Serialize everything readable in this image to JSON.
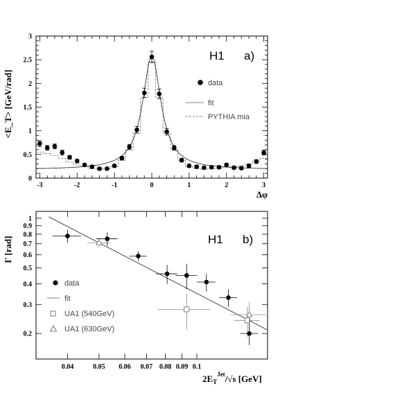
{
  "chart_data": [
    {
      "type": "scatter",
      "panel_label": "a)",
      "experiment_label": "H1",
      "xlabel": "Δφ",
      "ylabel": "<E_T> [GeV/rad]",
      "xlim": [
        -3.1,
        3.1
      ],
      "ylim": [
        0,
        3
      ],
      "x_ticks": [
        -3,
        -2,
        -1,
        0,
        1,
        2,
        3
      ],
      "y_ticks": [
        0,
        0.5,
        1,
        1.5,
        2,
        2.5,
        3
      ],
      "x_tick_labels": [
        "-3",
        "-2",
        "-1",
        "0",
        "1",
        "2",
        "3"
      ],
      "y_tick_labels": [
        "0",
        "0.5",
        "1",
        "1.5",
        "2",
        "2.5",
        "3"
      ],
      "legend": [
        {
          "label": "data",
          "style": "dot"
        },
        {
          "label": "fit",
          "style": "solid"
        },
        {
          "label": "PYTHIA mia",
          "style": "dashed"
        }
      ],
      "series": [
        {
          "name": "data",
          "x": [
            -3.0,
            -2.8,
            -2.6,
            -2.4,
            -2.2,
            -2.0,
            -1.8,
            -1.6,
            -1.4,
            -1.2,
            -1.0,
            -0.8,
            -0.6,
            -0.4,
            -0.2,
            0.0,
            0.2,
            0.4,
            0.6,
            0.8,
            1.0,
            1.2,
            1.4,
            1.6,
            1.8,
            2.0,
            2.2,
            2.4,
            2.6,
            2.8,
            3.0
          ],
          "y": [
            0.73,
            0.64,
            0.67,
            0.54,
            0.44,
            0.36,
            0.28,
            0.24,
            0.2,
            0.2,
            0.26,
            0.42,
            0.66,
            1.02,
            1.8,
            2.56,
            1.78,
            0.98,
            0.64,
            0.38,
            0.26,
            0.24,
            0.22,
            0.23,
            0.23,
            0.28,
            0.22,
            0.21,
            0.26,
            0.35,
            0.54
          ],
          "yerr": [
            0.06,
            0.05,
            0.05,
            0.05,
            0.04,
            0.04,
            0.03,
            0.03,
            0.03,
            0.03,
            0.03,
            0.04,
            0.05,
            0.07,
            0.1,
            0.12,
            0.1,
            0.07,
            0.05,
            0.04,
            0.03,
            0.03,
            0.03,
            0.03,
            0.03,
            0.03,
            0.03,
            0.03,
            0.03,
            0.04,
            0.05
          ]
        },
        {
          "name": "fit",
          "function": "lorentzian_plus_constant",
          "amplitude": 2.4,
          "width": 0.3,
          "pedestal": 0.18
        },
        {
          "name": "PYTHIA mia",
          "x": [
            -3.0,
            -2.8,
            -2.6,
            -2.4,
            -2.2,
            -2.0,
            -1.8,
            -1.6,
            -1.4,
            -1.2,
            -1.0,
            -0.8,
            -0.6,
            -0.4,
            -0.2,
            0.0,
            0.2,
            0.4,
            0.6,
            0.8,
            1.0,
            1.2,
            1.4,
            1.6,
            1.8,
            2.0,
            2.2,
            2.4,
            2.6,
            2.8,
            3.0
          ],
          "y": [
            0.55,
            0.52,
            0.48,
            0.42,
            0.34,
            0.28,
            0.24,
            0.2,
            0.19,
            0.2,
            0.24,
            0.38,
            0.6,
            0.95,
            1.7,
            2.45,
            1.7,
            0.95,
            0.6,
            0.38,
            0.24,
            0.2,
            0.19,
            0.2,
            0.21,
            0.24,
            0.24,
            0.26,
            0.3,
            0.36,
            0.42
          ]
        }
      ]
    },
    {
      "type": "scatter",
      "panel_label": "b)",
      "experiment_label": "H1",
      "xlabel": "2E_T^Jet/√s [GeV]",
      "ylabel": "Γ [rad]",
      "x_scale": "log",
      "y_scale": "log",
      "xlim": [
        0.032,
        0.165
      ],
      "ylim": [
        0.14,
        1.1
      ],
      "x_ticks": [
        0.04,
        0.05,
        0.06,
        0.07,
        0.08,
        0.09,
        0.1
      ],
      "x_tick_labels": [
        "0.04",
        "0.05",
        "0.06",
        "0.07",
        "0.08",
        "0.09",
        "0.1"
      ],
      "y_ticks": [
        0.2,
        0.3,
        0.4,
        0.5,
        0.6,
        0.7,
        0.8,
        0.9,
        1
      ],
      "y_tick_labels": [
        "0.2",
        "0.3",
        "0.4",
        "0.5",
        "0.6",
        "0.7",
        "0.8",
        "0.9",
        "1"
      ],
      "legend": [
        {
          "label": "data",
          "style": "dot"
        },
        {
          "label": "fit",
          "style": "solid"
        },
        {
          "label": "UA1 (540GeV)",
          "style": "open-square"
        },
        {
          "label": "UA1 (630GeV)",
          "style": "open-triangle"
        }
      ],
      "series": [
        {
          "name": "data",
          "x": [
            0.04,
            0.053,
            0.066,
            0.081,
            0.093,
            0.107,
            0.125,
            0.145
          ],
          "xerr": [
            0.004,
            0.004,
            0.004,
            0.006,
            0.007,
            0.007,
            0.008,
            0.009
          ],
          "y": [
            0.78,
            0.75,
            0.59,
            0.46,
            0.45,
            0.41,
            0.33,
            0.2
          ],
          "yerr": [
            0.07,
            0.07,
            0.04,
            0.06,
            0.08,
            0.05,
            0.04,
            0.03
          ]
        },
        {
          "name": "fit",
          "x": [
            0.035,
            0.165
          ],
          "y": [
            1.02,
            0.21
          ]
        },
        {
          "name": "UA1 (540GeV)",
          "x": [
            0.093,
            0.143
          ],
          "xerr": [
            0.017,
            0.013
          ],
          "y": [
            0.28,
            0.24
          ],
          "yerr": [
            0.07,
            0.05
          ]
        },
        {
          "name": "UA1 (630GeV)",
          "x": [
            0.05,
            0.145
          ],
          "xerr": [
            0.004,
            0.018
          ],
          "y": [
            0.71,
            0.26
          ],
          "yerr": [
            0.05,
            0.05
          ]
        }
      ]
    }
  ]
}
